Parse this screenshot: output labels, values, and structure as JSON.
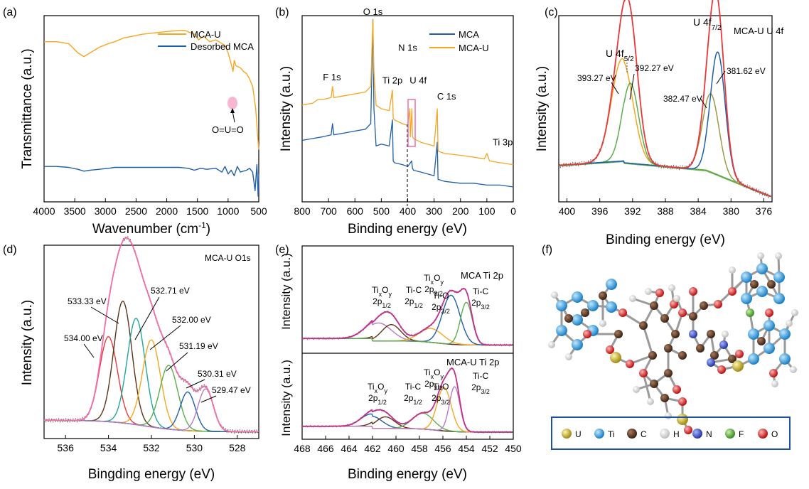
{
  "figure": {
    "colors": {
      "orange": "#F5A623",
      "blue": "#1F5FA8",
      "red": "#E8393A",
      "green": "#5AAE4B",
      "olive": "#9A9A4A",
      "brown": "#5C3317",
      "teal": "#1FA79A",
      "gray": "#777777",
      "purple": "#B57BC6",
      "pink": "#F06EAA",
      "magenta": "#C4308C",
      "black": "#222222",
      "axis": "#000000"
    }
  },
  "chart_data": [
    {
      "id": "a",
      "type": "line",
      "panel_label": "(a)",
      "xlabel": "Wavenumber (cm",
      "xlabel_sup": "-1",
      "xlabel_tail": ")",
      "ylabel": "Transmittance (a.u.)",
      "xlim": [
        4000,
        500
      ],
      "ylim": [
        0,
        1
      ],
      "xticks": [
        4000,
        3500,
        3000,
        2500,
        2000,
        1500,
        1000,
        500
      ],
      "legend_position": "top-right",
      "series": [
        {
          "name": "MCA-U",
          "color": "orange",
          "x": [
            4000,
            3800,
            3600,
            3450,
            3350,
            3250,
            3100,
            2950,
            2850,
            2700,
            2400,
            2000,
            1800,
            1700,
            1550,
            1480,
            1400,
            1300,
            1200,
            1100,
            1050,
            1000,
            950,
            920,
            900,
            870,
            800,
            750,
            700,
            650,
            600,
            550,
            520,
            500
          ],
          "y": [
            0.86,
            0.86,
            0.85,
            0.8,
            0.78,
            0.8,
            0.83,
            0.85,
            0.86,
            0.88,
            0.9,
            0.915,
            0.92,
            0.92,
            0.9,
            0.87,
            0.89,
            0.86,
            0.87,
            0.85,
            0.84,
            0.8,
            0.74,
            0.7,
            0.76,
            0.73,
            0.72,
            0.7,
            0.69,
            0.66,
            0.62,
            0.5,
            0.36,
            0.28
          ]
        },
        {
          "name": "Desorbed MCA",
          "color": "blue",
          "x": [
            4000,
            3800,
            3600,
            3450,
            3350,
            3250,
            3100,
            2950,
            2850,
            2700,
            2400,
            2000,
            1800,
            1650,
            1550,
            1450,
            1350,
            1200,
            1100,
            1050,
            1000,
            950,
            900,
            850,
            800,
            700,
            650,
            600,
            560,
            530,
            510,
            500
          ],
          "y": [
            0.19,
            0.19,
            0.185,
            0.175,
            0.165,
            0.17,
            0.175,
            0.18,
            0.185,
            0.185,
            0.185,
            0.185,
            0.185,
            0.18,
            0.17,
            0.18,
            0.175,
            0.18,
            0.16,
            0.19,
            0.15,
            0.17,
            0.14,
            0.19,
            0.16,
            0.17,
            0.18,
            0.16,
            0.06,
            0.2,
            0.03,
            0.15
          ]
        }
      ],
      "annotations": [
        {
          "text": "O=U=O",
          "x": 920,
          "y": 0.7
        }
      ]
    },
    {
      "id": "b",
      "type": "line",
      "panel_label": "(b)",
      "xlabel": "Binding energy (eV)",
      "ylabel": "Intensity (a.u.)",
      "xlim": [
        800,
        0
      ],
      "ylim": [
        0,
        1
      ],
      "xticks": [
        800,
        700,
        600,
        500,
        400,
        300,
        200,
        100,
        0
      ],
      "legend_position": "top-right",
      "series": [
        {
          "name": "MCA",
          "color": "blue",
          "x": [
            800,
            760,
            720,
            690,
            685,
            680,
            640,
            600,
            560,
            540,
            532,
            528,
            520,
            500,
            470,
            458,
            455,
            450,
            420,
            400,
            385,
            382,
            378,
            350,
            300,
            288,
            285,
            282,
            260,
            200,
            150,
            100,
            50,
            0
          ],
          "y": [
            0.33,
            0.34,
            0.35,
            0.36,
            0.42,
            0.36,
            0.37,
            0.38,
            0.39,
            0.42,
            0.98,
            0.5,
            0.3,
            0.31,
            0.3,
            0.44,
            0.22,
            0.21,
            0.2,
            0.19,
            0.22,
            0.18,
            0.17,
            0.16,
            0.14,
            0.32,
            0.12,
            0.12,
            0.11,
            0.1,
            0.1,
            0.09,
            0.09,
            0.08
          ]
        },
        {
          "name": "MCA-U",
          "color": "orange",
          "x": [
            800,
            760,
            740,
            720,
            690,
            685,
            680,
            640,
            600,
            560,
            540,
            532,
            528,
            520,
            500,
            470,
            458,
            455,
            450,
            420,
            400,
            392,
            390,
            384,
            382,
            378,
            350,
            300,
            288,
            285,
            282,
            260,
            200,
            150,
            110,
            100,
            90,
            50,
            0
          ],
          "y": [
            0.52,
            0.53,
            0.55,
            0.55,
            0.56,
            0.62,
            0.56,
            0.57,
            0.58,
            0.59,
            0.62,
            0.98,
            0.7,
            0.52,
            0.5,
            0.49,
            0.6,
            0.45,
            0.44,
            0.42,
            0.41,
            0.5,
            0.35,
            0.5,
            0.35,
            0.34,
            0.32,
            0.3,
            0.5,
            0.28,
            0.27,
            0.26,
            0.25,
            0.24,
            0.23,
            0.26,
            0.22,
            0.21,
            0.2
          ]
        }
      ],
      "peak_labels": [
        {
          "text": "O 1s",
          "x": 532,
          "y": 0.98
        },
        {
          "text": "F 1s",
          "x": 687,
          "y": 0.63
        },
        {
          "text": "Ti 2p",
          "x": 458,
          "y": 0.62
        },
        {
          "text": "N 1s",
          "x": 400,
          "y": 0.78
        },
        {
          "text": "U 4f",
          "x": 382,
          "y": 0.62
        },
        {
          "text": "C 1s",
          "x": 285,
          "y": 0.52
        },
        {
          "text": "Ti 3p",
          "x": 40,
          "y": 0.28
        }
      ]
    },
    {
      "id": "c",
      "type": "line",
      "panel_label": "(c)",
      "title": "MCA-U U 4f",
      "xlabel": "Binding energy (eV)",
      "ylabel": "Intensity (a.u.)",
      "xlim": [
        401,
        375
      ],
      "ylim": [
        0,
        1
      ],
      "xticks": [
        400,
        396,
        392,
        388,
        384,
        380,
        376
      ],
      "components": [
        {
          "name": "envelope",
          "color": "red",
          "center": null
        },
        {
          "name": "U 4f5/2 main",
          "color": "orange",
          "center": 393.27,
          "height": 0.55,
          "width": 1.3
        },
        {
          "name": "U 4f5/2 sat",
          "color": "green",
          "center": 392.27,
          "height": 0.43,
          "width": 1.0
        },
        {
          "name": "U 4f7/2 sat",
          "color": "olive",
          "center": 382.47,
          "height": 0.42,
          "width": 1.0
        },
        {
          "name": "U 4f7/2 main",
          "color": "blue",
          "center": 381.62,
          "height": 0.66,
          "width": 0.9
        }
      ],
      "peak_labels": [
        {
          "text": "393.27 eV"
        },
        {
          "text": "392.27 eV"
        },
        {
          "text": "382.47 eV"
        },
        {
          "text": "381.62 eV"
        },
        {
          "text": "U 4f",
          "sub": "5/2"
        },
        {
          "text": "U 4f",
          "sub": "7/2"
        }
      ]
    },
    {
      "id": "d",
      "type": "line",
      "panel_label": "(d)",
      "title": "MCA-U O1s",
      "xlabel": "Bingding energy (eV)",
      "ylabel": "Intensity (a.u.)",
      "xlim": [
        537,
        527
      ],
      "ylim": [
        0,
        1
      ],
      "xticks": [
        536,
        534,
        532,
        530,
        528
      ],
      "components": [
        {
          "name": "534.00 eV",
          "color": "red",
          "center": 534.0,
          "height": 0.44,
          "width": 0.42
        },
        {
          "name": "533.33 eV",
          "color": "brown",
          "center": 533.33,
          "height": 0.63,
          "width": 0.42
        },
        {
          "name": "532.71 eV",
          "color": "teal",
          "center": 532.71,
          "height": 0.55,
          "width": 0.42
        },
        {
          "name": "532.00 eV",
          "color": "orange",
          "center": 532.0,
          "height": 0.45,
          "width": 0.42
        },
        {
          "name": "531.19 eV",
          "color": "green",
          "center": 531.19,
          "height": 0.33,
          "width": 0.42
        },
        {
          "name": "530.31 eV",
          "color": "blue",
          "center": 530.31,
          "height": 0.2,
          "width": 0.35
        },
        {
          "name": "529.47 eV",
          "color": "purple",
          "center": 529.47,
          "height": 0.22,
          "width": 0.35
        }
      ]
    },
    {
      "id": "e",
      "type": "line",
      "panel_label": "(e)",
      "xlabel": "Binding energy (eV)",
      "ylabel": "Intensity (a.u.)",
      "xlim": [
        468,
        450
      ],
      "xticks": [
        468,
        466,
        464,
        462,
        460,
        458,
        456,
        454,
        452,
        450
      ],
      "subplots": [
        {
          "title": "MCA Ti 2p",
          "components": [
            {
              "name": "TixOy 2p1/2",
              "color": "purple",
              "center": 461.5,
              "height": 0.22,
              "width": 1.1
            },
            {
              "name": "Ti-C 2p1/2",
              "color": "brown",
              "center": 460.4,
              "height": 0.2,
              "width": 0.8
            },
            {
              "name": "Ti-O 2p3/2",
              "color": "orange",
              "center": 457.0,
              "height": 0.17,
              "width": 1.0
            },
            {
              "name": "TixOy 2p3/2",
              "color": "blue",
              "center": 455.3,
              "height": 0.6,
              "width": 0.75
            },
            {
              "name": "Ti-C 2p3/2",
              "color": "green",
              "center": 454.0,
              "height": 0.52,
              "width": 0.5
            }
          ],
          "labels": [
            {
              "text": "Ti",
              "sub1": "x",
              "mid": "O",
              "sub2": "y",
              "line2": "2p",
              "line2_sub": "1/2"
            },
            {
              "text": "Ti-C",
              "line2": "2p",
              "line2_sub": "1/2"
            },
            {
              "text": "Ti-O",
              "line2": "2p",
              "line2_sub": "3/2"
            },
            {
              "text": "Ti",
              "sub1": "x",
              "mid": "O",
              "sub2": "y",
              "line2": "2p",
              "line2_sub": "3/2"
            },
            {
              "text": "Ti-C",
              "line2": "2p",
              "line2_sub": "3/2"
            }
          ]
        },
        {
          "title": "MCA-U Ti 2p",
          "components": [
            {
              "name": "TixOy 2p1/2",
              "color": "blue",
              "center": 462.1,
              "height": 0.17,
              "width": 0.9
            },
            {
              "name": "Ti-C 2p1/2",
              "color": "brown",
              "center": 460.9,
              "height": 0.16,
              "width": 0.8
            },
            {
              "name": "Ti-O 2p3/2",
              "color": "green",
              "center": 457.7,
              "height": 0.22,
              "width": 0.9
            },
            {
              "name": "TixOy 2p3/2",
              "color": "orange",
              "center": 455.9,
              "height": 0.6,
              "width": 0.6
            },
            {
              "name": "Ti-C 2p3/2",
              "color": "purple",
              "center": 455.0,
              "height": 0.62,
              "width": 0.45
            }
          ],
          "labels": [
            {
              "text": "Ti",
              "sub1": "x",
              "mid": "O",
              "sub2": "y",
              "line2": "2p",
              "line2_sub": "1/2"
            },
            {
              "text": "Ti-C",
              "line2": "2p",
              "line2_sub": "1/2"
            },
            {
              "text": "Ti-O",
              "line2": "2p",
              "line2_sub": "3/2"
            },
            {
              "text": "Ti",
              "sub1": "x",
              "mid": "O",
              "sub2": "y",
              "line2": "2p",
              "line2_sub": "3/2"
            },
            {
              "text": "Ti-C",
              "line2": "2p",
              "line2_sub": "3/2"
            }
          ]
        }
      ]
    }
  ],
  "structure": {
    "panel_label": "(f)",
    "legend": [
      {
        "label": "U",
        "color": "#C8B02A"
      },
      {
        "label": "Ti",
        "color": "#2FA3E8"
      },
      {
        "label": "C",
        "color": "#5C3A26"
      },
      {
        "label": "H",
        "color": "#F2F2F2"
      },
      {
        "label": "N",
        "color": "#3A4FC4"
      },
      {
        "label": "F",
        "color": "#5FAE3E"
      },
      {
        "label": "O",
        "color": "#E02A2A"
      }
    ]
  }
}
